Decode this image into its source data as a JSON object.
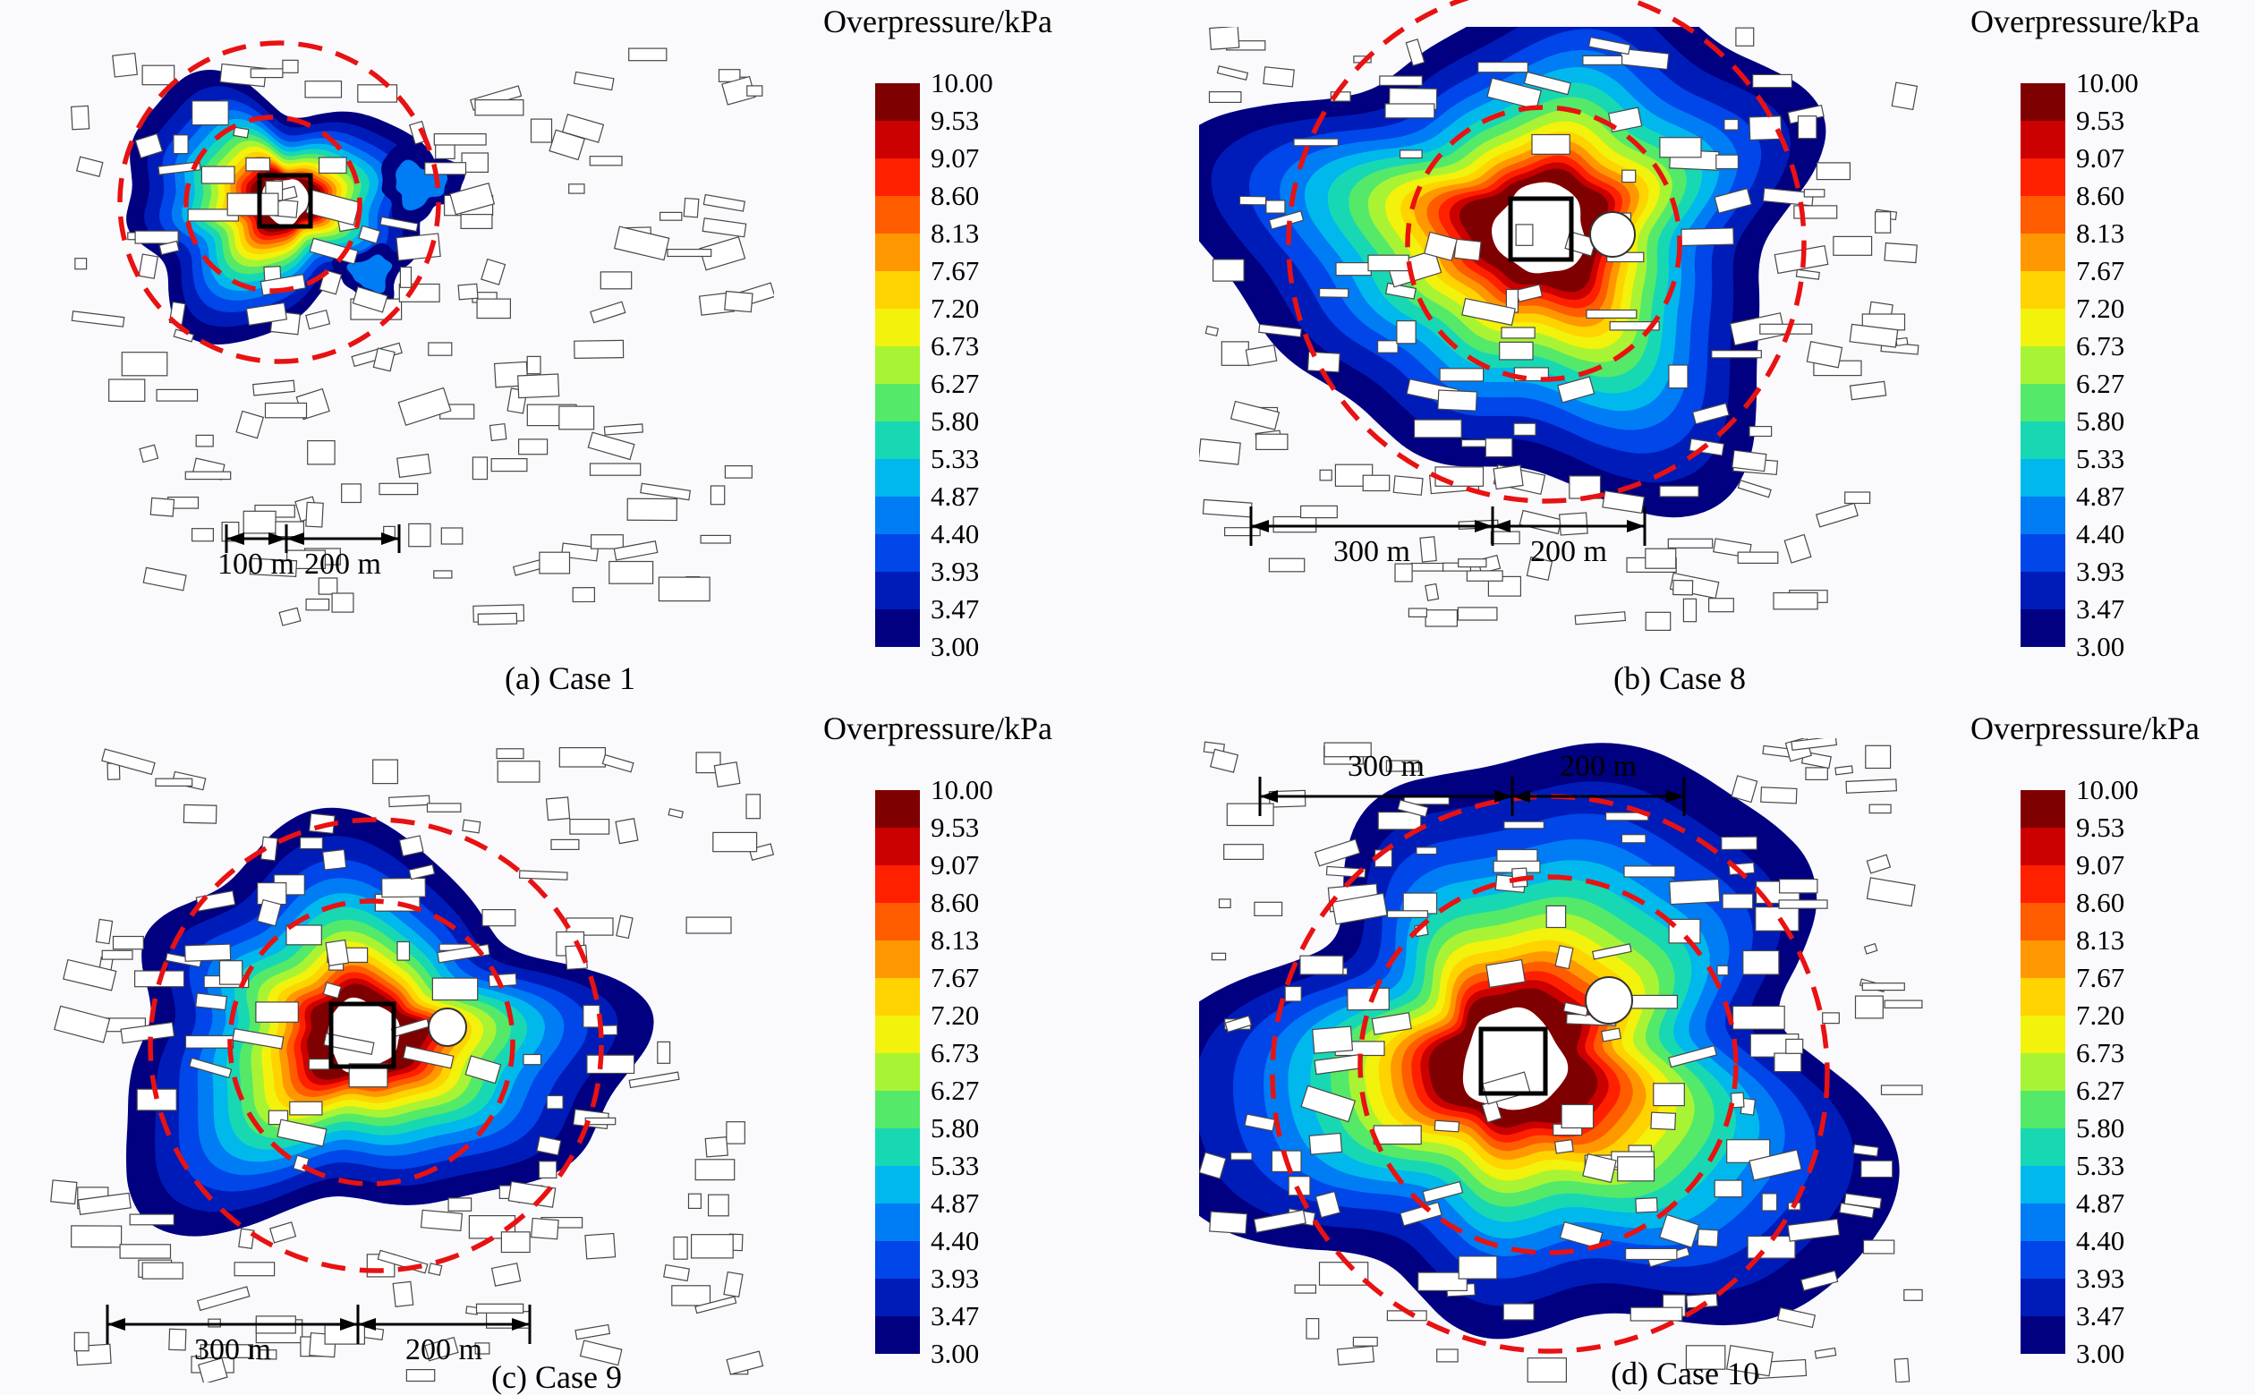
{
  "figure": {
    "annotation_color": "#e81212",
    "colorbar": {
      "title": "Overpressure/kPa",
      "min": "3.00",
      "max": "10.00",
      "tick_labels": [
        "10.00",
        "9.53",
        "9.07",
        "8.60",
        "8.13",
        "7.67",
        "7.20",
        "6.73",
        "6.27",
        "5.80",
        "5.33",
        "4.87",
        "4.40",
        "3.93",
        "3.47",
        "3.00"
      ],
      "segment_colors_top_to_bottom": [
        "#7f0000",
        "#cb0000",
        "#ff2000",
        "#ff5c00",
        "#ff9800",
        "#ffd300",
        "#f2f20c",
        "#a8f434",
        "#55e96a",
        "#18d8b4",
        "#00b8ec",
        "#007cf4",
        "#0046e8",
        "#001cb8",
        "#000080"
      ]
    },
    "panels": [
      {
        "id": "a",
        "caption": "(a) Case 1",
        "scale_labels": [
          "100 m",
          "200 m"
        ]
      },
      {
        "id": "b",
        "caption": "(b) Case 8",
        "scale_labels": [
          "300 m",
          "200 m"
        ]
      },
      {
        "id": "c",
        "caption": "(c) Case 9",
        "scale_labels": [
          "300 m",
          "200 m"
        ]
      },
      {
        "id": "d",
        "caption": "(d) Case 10",
        "scale_labels": [
          "300 m",
          "200 m"
        ]
      }
    ]
  },
  "chart_data": [
    {
      "type": "heatmap",
      "title": "(a) Case 1",
      "variable": "Overpressure",
      "unit": "kPa",
      "colorbar_title": "Overpressure/kPa",
      "value_range": [
        3.0,
        10.0
      ],
      "colorbar_ticks": [
        10.0,
        9.53,
        9.07,
        8.6,
        8.13,
        7.67,
        7.2,
        6.73,
        6.27,
        5.8,
        5.33,
        4.87,
        4.4,
        3.93,
        3.47,
        3.0
      ],
      "legend_position": "right",
      "scale_bar_segments_m": [
        100,
        200
      ],
      "annotations": [
        "100 m",
        "200 m"
      ],
      "notes": "Blast overpressure contour map (3-10 kPa, jet colormap) over an urban building layout; black square marks the source block; two concentric red dashed circles mark 100 m and 300 m ranges."
    },
    {
      "type": "heatmap",
      "title": "(b) Case 8",
      "variable": "Overpressure",
      "unit": "kPa",
      "colorbar_title": "Overpressure/kPa",
      "value_range": [
        3.0,
        10.0
      ],
      "colorbar_ticks": [
        10.0,
        9.53,
        9.07,
        8.6,
        8.13,
        7.67,
        7.2,
        6.73,
        6.27,
        5.8,
        5.33,
        4.87,
        4.4,
        3.93,
        3.47,
        3.0
      ],
      "legend_position": "right",
      "scale_bar_segments_m": [
        300,
        200
      ],
      "annotations": [
        "300 m",
        "200 m"
      ],
      "notes": "Blast overpressure contour map (3-10 kPa) over urban layout; red dashed circles at 300 m and 500 m ranges around the black source square."
    },
    {
      "type": "heatmap",
      "title": "(c) Case 9",
      "variable": "Overpressure",
      "unit": "kPa",
      "colorbar_title": "Overpressure/kPa",
      "value_range": [
        3.0,
        10.0
      ],
      "colorbar_ticks": [
        10.0,
        9.53,
        9.07,
        8.6,
        8.13,
        7.67,
        7.2,
        6.73,
        6.27,
        5.8,
        5.33,
        4.87,
        4.4,
        3.93,
        3.47,
        3.0
      ],
      "legend_position": "right",
      "scale_bar_segments_m": [
        300,
        200
      ],
      "annotations": [
        "300 m",
        "200 m"
      ],
      "notes": "Blast overpressure contour map (3-10 kPa) over urban layout; red dashed circles at 300 m and 500 m ranges around the black source square."
    },
    {
      "type": "heatmap",
      "title": "(d) Case 10",
      "variable": "Overpressure",
      "unit": "kPa",
      "colorbar_title": "Overpressure/kPa",
      "value_range": [
        3.0,
        10.0
      ],
      "colorbar_ticks": [
        10.0,
        9.53,
        9.07,
        8.6,
        8.13,
        7.67,
        7.2,
        6.73,
        6.27,
        5.8,
        5.33,
        4.87,
        4.4,
        3.93,
        3.47,
        3.0
      ],
      "legend_position": "right",
      "scale_bar_segments_m": [
        300,
        200
      ],
      "annotations": [
        "300 m",
        "200 m"
      ],
      "notes": "Blast overpressure contour map (3-10 kPa) over urban layout; scale bar at top; red dashed circles at 300 m and 500 m ranges around the black source square."
    }
  ]
}
